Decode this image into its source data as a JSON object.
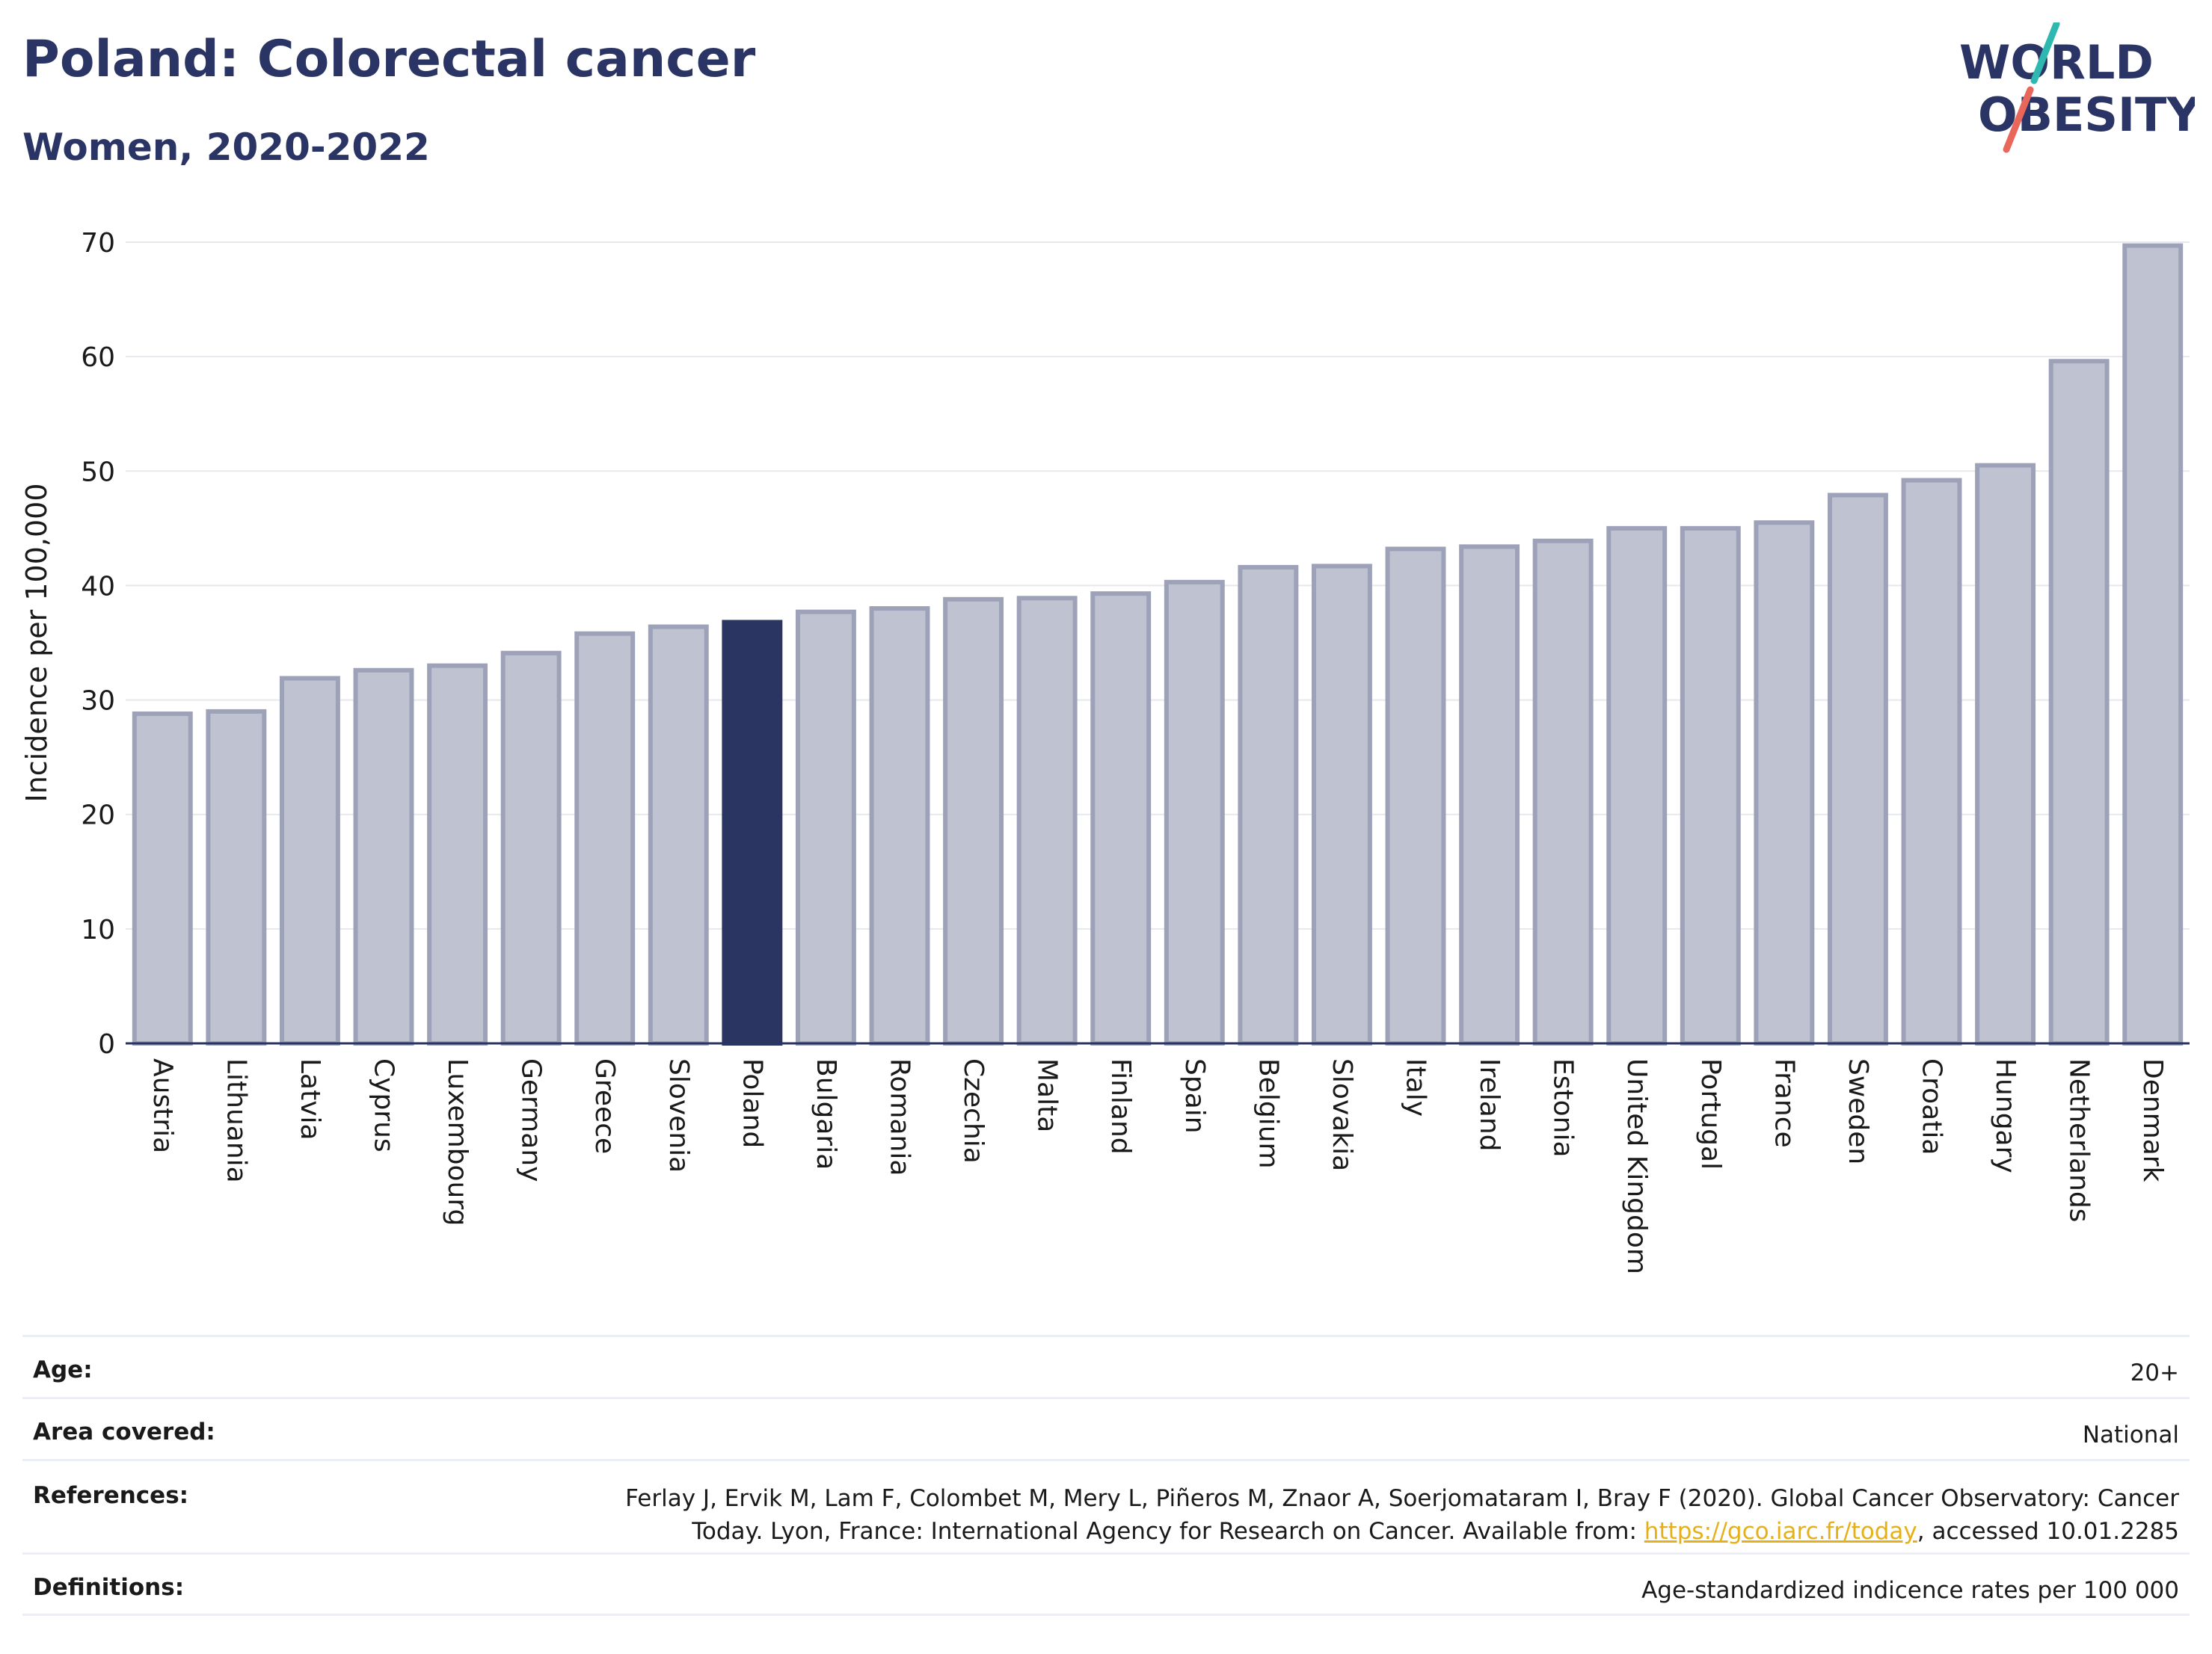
{
  "header": {
    "title": "Poland: Colorectal cancer",
    "subtitle": "Women, 2020-2022"
  },
  "logo": {
    "line1": "WORLD",
    "line2": "OBESITY",
    "accent_colors": [
      "#2fb8b0",
      "#e8675a"
    ]
  },
  "colors": {
    "highlight": "#2b3561",
    "bar_fill": "#bfc2d0",
    "bar_stroke": "#9da2b8",
    "text_dark": "#2b3565",
    "link": "#e6b019"
  },
  "chart_data": {
    "type": "bar",
    "ylabel": "Incidence per 100,000",
    "ylim": [
      0,
      70
    ],
    "yticks": [
      0,
      10,
      20,
      30,
      40,
      50,
      60,
      70
    ],
    "grid": true,
    "highlight": "Poland",
    "categories": [
      "Austria",
      "Lithuania",
      "Latvia",
      "Cyprus",
      "Luxembourg",
      "Germany",
      "Greece",
      "Slovenia",
      "Poland",
      "Bulgaria",
      "Romania",
      "Czechia",
      "Malta",
      "Finland",
      "Spain",
      "Belgium",
      "Slovakia",
      "Italy",
      "Ireland",
      "Estonia",
      "United Kingdom",
      "Portugal",
      "France",
      "Sweden",
      "Croatia",
      "Hungary",
      "Netherlands",
      "Denmark"
    ],
    "values": [
      28.8,
      29.0,
      31.9,
      32.6,
      33.0,
      34.1,
      35.8,
      36.4,
      36.8,
      37.7,
      38.0,
      38.8,
      38.9,
      39.3,
      40.3,
      41.6,
      41.7,
      43.2,
      43.4,
      43.9,
      45.0,
      45.0,
      45.5,
      47.9,
      49.2,
      50.5,
      59.6,
      69.7
    ]
  },
  "info": {
    "age_label": "Age:",
    "age_value": "20+",
    "area_label": "Area covered:",
    "area_value": "National",
    "references_label": "References:",
    "references_line1": "Ferlay J, Ervik M, Lam F, Colombet M, Mery L, Piñeros M, Znaor A, Soerjomataram I, Bray F (2020). Global Cancer Observatory: Cancer",
    "references_line2_pre": "Today. Lyon, France: International Agency for Research on Cancer. Available from: ",
    "references_link": "https://gco.iarc.fr/today",
    "references_line2_post": ", accessed 10.01.2285",
    "definitions_label": "Definitions:",
    "definitions_value": "Age-standardized indicence rates per 100 000"
  }
}
